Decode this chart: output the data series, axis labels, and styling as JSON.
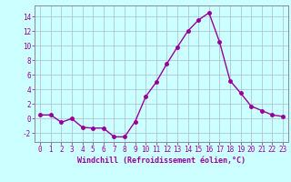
{
  "x": [
    0,
    1,
    2,
    3,
    4,
    5,
    6,
    7,
    8,
    9,
    10,
    11,
    12,
    13,
    14,
    15,
    16,
    17,
    18,
    19,
    20,
    21,
    22,
    23
  ],
  "y": [
    0.5,
    0.5,
    -0.5,
    0.0,
    -1.2,
    -1.3,
    -1.3,
    -2.5,
    -2.5,
    -0.4,
    3.0,
    5.0,
    7.5,
    9.8,
    12.0,
    13.5,
    14.5,
    10.5,
    5.2,
    3.5,
    1.7,
    1.1,
    0.5,
    0.3
  ],
  "line_color": "#990099",
  "marker": "o",
  "markersize": 2.5,
  "linewidth": 1.0,
  "bg_color": "#ccffff",
  "grid_color": "#aabbcc",
  "xlabel": "Windchill (Refroidissement éolien,°C)",
  "xlabel_fontsize": 6,
  "ylabel_ticks": [
    -2,
    0,
    2,
    4,
    6,
    8,
    10,
    12,
    14
  ],
  "xlim": [
    -0.5,
    23.5
  ],
  "ylim": [
    -3.2,
    15.5
  ],
  "tick_fontsize": 5.5,
  "title": ""
}
